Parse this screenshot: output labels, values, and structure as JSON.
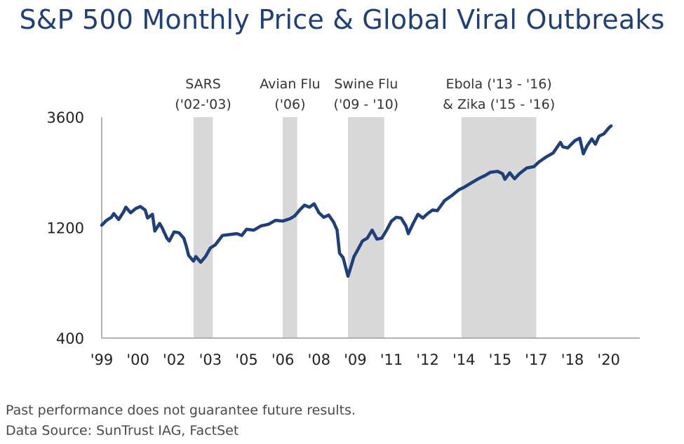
{
  "chart_data": {
    "type": "line",
    "title": "S&P 500 Monthly Price & Global Viral Outbreaks",
    "xlabel": "",
    "ylabel": "",
    "y_scale": "log",
    "ylim": [
      400,
      3600
    ],
    "y_ticks": [
      {
        "value": 3600,
        "label": "3600"
      },
      {
        "value": 1200,
        "label": "1200"
      },
      {
        "value": 400,
        "label": "400"
      }
    ],
    "xlim": [
      1999.0,
      2020.3
    ],
    "x_ticks": [
      {
        "value": 1999.0,
        "label": "'99"
      },
      {
        "value": 2000.5,
        "label": "'00"
      },
      {
        "value": 2002.0,
        "label": "'02"
      },
      {
        "value": 2003.5,
        "label": "'03"
      },
      {
        "value": 2005.0,
        "label": "'05"
      },
      {
        "value": 2006.5,
        "label": "'06"
      },
      {
        "value": 2008.0,
        "label": "'08"
      },
      {
        "value": 2009.5,
        "label": "'09"
      },
      {
        "value": 2011.0,
        "label": "'11"
      },
      {
        "value": 2012.5,
        "label": "'12"
      },
      {
        "value": 2014.0,
        "label": "'14"
      },
      {
        "value": 2015.5,
        "label": "'15"
      },
      {
        "value": 2017.0,
        "label": "'17"
      },
      {
        "value": 2018.5,
        "label": "'18"
      },
      {
        "value": 2020.0,
        "label": "'20"
      }
    ],
    "outbreaks": [
      {
        "name": "SARS",
        "label_line1": "SARS",
        "label_line2": "('02-'03)",
        "start": 2002.8,
        "end": 2003.6
      },
      {
        "name": "Avian Flu",
        "label_line1": "Avian Flu",
        "label_line2": "('06)",
        "start": 2006.5,
        "end": 2007.1
      },
      {
        "name": "Swine Flu",
        "label_line1": "Swine Flu",
        "label_line2": "('09 - '10)",
        "start": 2009.2,
        "end": 2010.7
      },
      {
        "name": "Ebola & Zika",
        "label_line1": "Ebola ('13 - '16)",
        "label_line2": "& Zika ('15 - '16)",
        "start": 2013.9,
        "end": 2017.0
      }
    ],
    "series": [
      {
        "name": "S&P 500 Monthly Price",
        "color": "#1f3f7a",
        "points": [
          [
            1999.0,
            1230
          ],
          [
            1999.2,
            1290
          ],
          [
            1999.4,
            1330
          ],
          [
            1999.5,
            1380
          ],
          [
            1999.7,
            1300
          ],
          [
            1999.9,
            1400
          ],
          [
            2000.0,
            1470
          ],
          [
            2000.2,
            1390
          ],
          [
            2000.4,
            1450
          ],
          [
            2000.6,
            1480
          ],
          [
            2000.8,
            1430
          ],
          [
            2000.9,
            1320
          ],
          [
            2001.1,
            1370
          ],
          [
            2001.2,
            1160
          ],
          [
            2001.4,
            1250
          ],
          [
            2001.5,
            1200
          ],
          [
            2001.7,
            1080
          ],
          [
            2001.8,
            1050
          ],
          [
            2002.0,
            1150
          ],
          [
            2002.2,
            1140
          ],
          [
            2002.4,
            1080
          ],
          [
            2002.5,
            1000
          ],
          [
            2002.6,
            910
          ],
          [
            2002.8,
            860
          ],
          [
            2002.9,
            900
          ],
          [
            2003.0,
            875
          ],
          [
            2003.1,
            850
          ],
          [
            2003.3,
            900
          ],
          [
            2003.5,
            980
          ],
          [
            2003.7,
            1010
          ],
          [
            2004.0,
            1110
          ],
          [
            2004.3,
            1120
          ],
          [
            2004.6,
            1130
          ],
          [
            2004.8,
            1110
          ],
          [
            2005.0,
            1180
          ],
          [
            2005.3,
            1170
          ],
          [
            2005.6,
            1220
          ],
          [
            2005.9,
            1240
          ],
          [
            2006.2,
            1290
          ],
          [
            2006.5,
            1280
          ],
          [
            2006.8,
            1310
          ],
          [
            2007.0,
            1350
          ],
          [
            2007.2,
            1430
          ],
          [
            2007.4,
            1500
          ],
          [
            2007.6,
            1470
          ],
          [
            2007.8,
            1520
          ],
          [
            2008.0,
            1390
          ],
          [
            2008.2,
            1330
          ],
          [
            2008.4,
            1360
          ],
          [
            2008.6,
            1270
          ],
          [
            2008.75,
            1170
          ],
          [
            2008.85,
            930
          ],
          [
            2009.0,
            890
          ],
          [
            2009.2,
            740
          ],
          [
            2009.3,
            800
          ],
          [
            2009.45,
            900
          ],
          [
            2009.6,
            960
          ],
          [
            2009.8,
            1050
          ],
          [
            2010.0,
            1080
          ],
          [
            2010.2,
            1170
          ],
          [
            2010.4,
            1070
          ],
          [
            2010.6,
            1080
          ],
          [
            2010.8,
            1170
          ],
          [
            2011.0,
            1280
          ],
          [
            2011.2,
            1330
          ],
          [
            2011.4,
            1320
          ],
          [
            2011.6,
            1220
          ],
          [
            2011.7,
            1130
          ],
          [
            2011.9,
            1250
          ],
          [
            2012.1,
            1370
          ],
          [
            2012.3,
            1320
          ],
          [
            2012.5,
            1380
          ],
          [
            2012.7,
            1430
          ],
          [
            2012.9,
            1420
          ],
          [
            2013.2,
            1570
          ],
          [
            2013.5,
            1650
          ],
          [
            2013.8,
            1750
          ],
          [
            2014.0,
            1790
          ],
          [
            2014.3,
            1870
          ],
          [
            2014.6,
            1950
          ],
          [
            2014.9,
            2020
          ],
          [
            2015.1,
            2080
          ],
          [
            2015.4,
            2100
          ],
          [
            2015.6,
            2050
          ],
          [
            2015.7,
            1940
          ],
          [
            2015.9,
            2070
          ],
          [
            2016.1,
            1950
          ],
          [
            2016.3,
            2050
          ],
          [
            2016.6,
            2170
          ],
          [
            2016.9,
            2200
          ],
          [
            2017.1,
            2300
          ],
          [
            2017.4,
            2420
          ],
          [
            2017.7,
            2520
          ],
          [
            2018.0,
            2800
          ],
          [
            2018.1,
            2680
          ],
          [
            2018.3,
            2650
          ],
          [
            2018.6,
            2850
          ],
          [
            2018.8,
            2920
          ],
          [
            2018.95,
            2500
          ],
          [
            2019.1,
            2700
          ],
          [
            2019.3,
            2900
          ],
          [
            2019.45,
            2750
          ],
          [
            2019.6,
            2980
          ],
          [
            2019.8,
            3050
          ],
          [
            2020.0,
            3230
          ],
          [
            2020.1,
            3300
          ]
        ]
      }
    ]
  },
  "footnotes": {
    "disclaimer": "Past performance does not guarantee future results.",
    "source": "Data Source: SunTrust IAG, FactSet"
  }
}
